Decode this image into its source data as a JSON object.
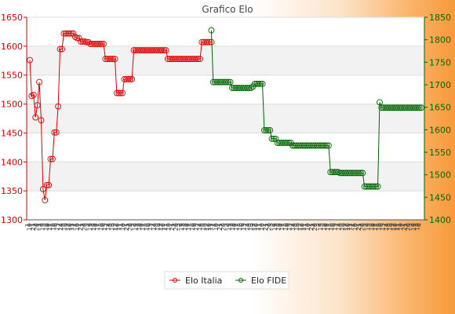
{
  "chart_data": {
    "type": "line",
    "title": "Grafico Elo",
    "legend_position": "bottom",
    "grid": true,
    "axes": {
      "left": {
        "min": 1300,
        "max": 1650,
        "step": 50,
        "color": "#e00000",
        "ticks": [
          "1300",
          "1350",
          "1400",
          "1450",
          "1500",
          "1550",
          "1600",
          "1650"
        ]
      },
      "right": {
        "min": 1400,
        "max": 1850,
        "step": 50,
        "color": "#006600",
        "ticks": [
          "1400",
          "1450",
          "1500",
          "1550",
          "1600",
          "1650",
          "1700",
          "1750",
          "1800",
          "1850"
        ]
      }
    },
    "series": [
      {
        "name": "Elo Italia",
        "color": "#e00000",
        "axis": "left",
        "values": [
          1576,
          1514,
          1516,
          1477,
          1498,
          1538,
          1472,
          1353,
          1334,
          1360,
          1360,
          1405,
          1405,
          1451,
          1451,
          1496,
          1595,
          1595,
          1622,
          1622,
          1622,
          1622,
          1622,
          1622,
          1616,
          1614,
          1614,
          1608,
          1608,
          1608,
          1607,
          1607,
          1604,
          1604,
          1604,
          1604,
          1604,
          1604,
          1604,
          1604,
          1578,
          1578,
          1578,
          1578,
          1578,
          1578,
          1519,
          1519,
          1519,
          1519,
          1543,
          1543,
          1543,
          1543,
          1543,
          1593,
          1593,
          1593,
          1593,
          1593,
          1593,
          1593,
          1593,
          1593,
          1593,
          1593,
          1593,
          1593,
          1593,
          1593,
          1593,
          1593,
          1593,
          1578,
          1578,
          1578,
          1578,
          1578,
          1578,
          1578,
          1578,
          1578,
          1578,
          1578,
          1578,
          1578,
          1578,
          1578,
          1578,
          1578,
          1578,
          1607,
          1607,
          1607,
          1607,
          1607,
          1607
        ]
      },
      {
        "name": "Elo FIDE",
        "color": "#006600",
        "axis": "right",
        "values": [
          null,
          null,
          null,
          null,
          null,
          null,
          null,
          null,
          null,
          null,
          null,
          null,
          null,
          null,
          null,
          null,
          null,
          null,
          null,
          null,
          null,
          null,
          null,
          null,
          null,
          null,
          null,
          null,
          null,
          null,
          null,
          null,
          null,
          null,
          null,
          null,
          null,
          null,
          null,
          null,
          null,
          null,
          null,
          null,
          null,
          null,
          null,
          null,
          null,
          null,
          null,
          null,
          null,
          null,
          null,
          null,
          null,
          null,
          null,
          null,
          null,
          null,
          null,
          null,
          null,
          null,
          null,
          null,
          null,
          null,
          null,
          null,
          null,
          null,
          null,
          null,
          null,
          null,
          null,
          null,
          null,
          null,
          null,
          null,
          null,
          null,
          null,
          null,
          null,
          null,
          null,
          null,
          null,
          null,
          null,
          null,
          1821,
          1706,
          1706,
          1706,
          1706,
          1706,
          1706,
          1706,
          1706,
          1706,
          1706,
          1693,
          1693,
          1693,
          1693,
          1693,
          1693,
          1693,
          1693,
          1693,
          1693,
          1693,
          1696,
          1702,
          1702,
          1702,
          1702,
          1702,
          1599,
          1599,
          1599,
          1599,
          1580,
          1580,
          1580,
          1571,
          1571,
          1571,
          1571,
          1571,
          1571,
          1571,
          1571,
          1565,
          1565,
          1565,
          1565,
          1565,
          1565,
          1565,
          1565,
          1565,
          1565,
          1565,
          1565,
          1565,
          1565,
          1565,
          1565,
          1565,
          1565,
          1565,
          1565,
          1506,
          1506,
          1506,
          1506,
          1506,
          1504,
          1504,
          1504,
          1504,
          1504,
          1504,
          1504,
          1504,
          1504,
          1504,
          1504,
          1504,
          1504,
          1474,
          1474,
          1474,
          1474,
          1474,
          1474,
          1474,
          1474,
          1661,
          1649,
          1649,
          1649,
          1649,
          1649,
          1649,
          1649,
          1649,
          1649,
          1649,
          1649,
          1649,
          1649,
          1649,
          1649,
          1649,
          1649,
          1649,
          1649,
          1649,
          1649,
          1649
        ]
      }
    ],
    "xlabels": [
      "1",
      "10",
      "1",
      "21",
      "2",
      "20",
      "1",
      "2",
      "19",
      "3",
      "18",
      "4",
      "17",
      "5",
      "16",
      "6",
      "15",
      "7",
      "14",
      "8",
      "13",
      "9",
      "12",
      "10",
      "11",
      "2",
      "1",
      "10",
      "2",
      "21",
      "2",
      "20",
      "3",
      "2",
      "19",
      "3",
      "18",
      "4",
      "17",
      "5",
      "16",
      "6",
      "15",
      "7",
      "14",
      "8",
      "13",
      "9",
      "12",
      "10",
      "11",
      "1",
      "10",
      "2",
      "21",
      "2",
      "20",
      "3",
      "2",
      "19",
      "3",
      "18",
      "4",
      "17",
      "5",
      "16",
      "6",
      "15",
      "7",
      "14",
      "8",
      "13",
      "9",
      "12",
      "10",
      "11",
      "1",
      "10",
      "2",
      "21",
      "2",
      "20",
      "3",
      "2",
      "19",
      "3",
      "18",
      "4",
      "17",
      "5",
      "16",
      "6",
      "15",
      "7",
      "14",
      "8",
      "13",
      "9",
      "12",
      "10",
      "11",
      "2",
      "1",
      "10",
      "2",
      "21",
      "2",
      "20",
      "3",
      "2",
      "19",
      "3",
      "18",
      "4",
      "17",
      "5",
      "16",
      "6",
      "15",
      "7",
      "14",
      "8",
      "13",
      "9",
      "12",
      "10",
      "11",
      "1",
      "10",
      "2",
      "21",
      "2",
      "20",
      "3",
      "2",
      "19",
      "3",
      "18",
      "4",
      "17",
      "5",
      "16",
      "6",
      "15",
      "7",
      "14",
      "8",
      "13",
      "9",
      "12",
      "10",
      "11",
      "1",
      "10",
      "2",
      "21",
      "2",
      "20",
      "3",
      "2",
      "19",
      "3",
      "18",
      "4",
      "17",
      "5",
      "16",
      "6",
      "15",
      "7",
      "14",
      "8",
      "13",
      "9",
      "12",
      "10",
      "11",
      "2",
      "1",
      "10",
      "2",
      "21",
      "2",
      "20",
      "3",
      "2",
      "19",
      "3",
      "18",
      "4",
      "17",
      "5",
      "16",
      "6",
      "15",
      "7",
      "14",
      "8",
      "13",
      "9",
      "12",
      "10",
      "11",
      "1",
      "10",
      "2",
      "21",
      "2",
      "20",
      "3",
      "2",
      "19",
      "3",
      "18",
      "4"
    ]
  }
}
